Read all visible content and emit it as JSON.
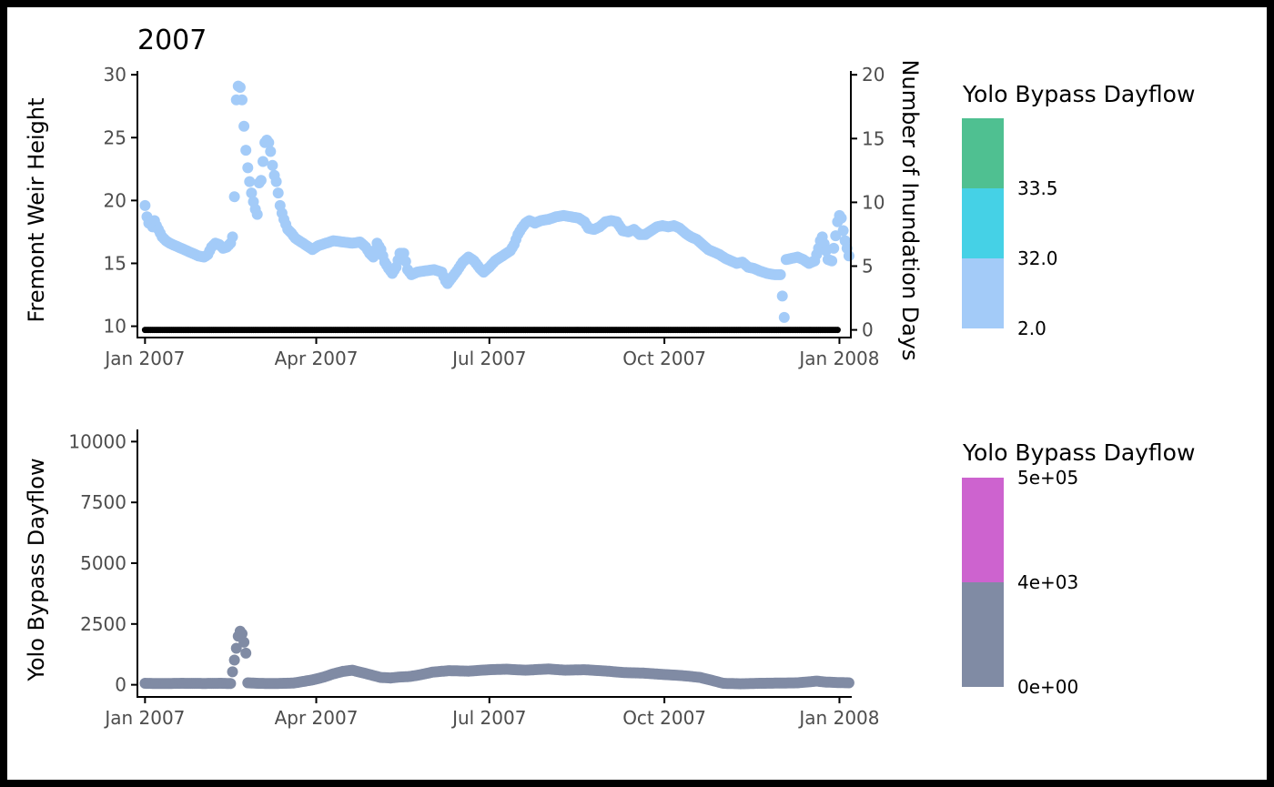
{
  "chart_data": [
    {
      "type": "scatter",
      "title": "2007",
      "ylabel": "Fremont Weir Height",
      "y2label": "Number of Inundation Days",
      "xlim": [
        "2006-12-28",
        "2008-01-07"
      ],
      "ylim": [
        9.1,
        30.3
      ],
      "y2lim": [
        -0.6,
        20.3
      ],
      "x_ticks": [
        {
          "date": "2007-01-01",
          "label": "Jan 2007"
        },
        {
          "date": "2007-04-01",
          "label": "Apr 2007"
        },
        {
          "date": "2007-07-01",
          "label": "Jul 2007"
        },
        {
          "date": "2007-10-01",
          "label": "Oct 2007"
        },
        {
          "date": "2008-01-01",
          "label": "Jan 2008"
        }
      ],
      "y_ticks": [
        10,
        15,
        20,
        25,
        30
      ],
      "y2_ticks": [
        0,
        5,
        10,
        15,
        20
      ],
      "inundation_days": {
        "color": "#000000",
        "value": 0,
        "start": "2007-01-01",
        "end": "2007-12-31"
      },
      "series_color": "#a3cbf8",
      "weir_height": [
        [
          "2007-01-01",
          19.6
        ],
        [
          "2007-01-02",
          18.7
        ],
        [
          "2007-01-03",
          18.2
        ],
        [
          "2007-01-04",
          18.3
        ],
        [
          "2007-01-05",
          17.9
        ],
        [
          "2007-01-06",
          18.4
        ],
        [
          "2007-01-07",
          18.0
        ],
        [
          "2007-01-08",
          17.7
        ],
        [
          "2007-01-09",
          17.4
        ],
        [
          "2007-01-10",
          17.1
        ],
        [
          "2007-01-12",
          16.8
        ],
        [
          "2007-01-14",
          16.6
        ],
        [
          "2007-01-17",
          16.4
        ],
        [
          "2007-01-20",
          16.2
        ],
        [
          "2007-01-23",
          16.0
        ],
        [
          "2007-01-26",
          15.8
        ],
        [
          "2007-01-29",
          15.6
        ],
        [
          "2007-02-01",
          15.5
        ],
        [
          "2007-02-03",
          15.7
        ],
        [
          "2007-02-05",
          16.3
        ],
        [
          "2007-02-07",
          16.6
        ],
        [
          "2007-02-09",
          16.5
        ],
        [
          "2007-02-11",
          16.2
        ],
        [
          "2007-02-13",
          16.3
        ],
        [
          "2007-02-15",
          16.6
        ],
        [
          "2007-02-16",
          17.1
        ],
        [
          "2007-02-17",
          20.3
        ],
        [
          "2007-02-18",
          28.0
        ],
        [
          "2007-02-19",
          29.1
        ],
        [
          "2007-02-20",
          29.0
        ],
        [
          "2007-02-21",
          28.0
        ],
        [
          "2007-02-22",
          25.9
        ],
        [
          "2007-02-23",
          24.0
        ],
        [
          "2007-02-24",
          22.6
        ],
        [
          "2007-02-25",
          21.5
        ],
        [
          "2007-02-26",
          20.6
        ],
        [
          "2007-02-27",
          19.9
        ],
        [
          "2007-02-28",
          19.3
        ],
        [
          "2007-03-01",
          18.9
        ],
        [
          "2007-03-02",
          21.4
        ],
        [
          "2007-03-03",
          21.6
        ],
        [
          "2007-03-04",
          23.1
        ],
        [
          "2007-03-05",
          24.6
        ],
        [
          "2007-03-06",
          24.8
        ],
        [
          "2007-03-07",
          24.6
        ],
        [
          "2007-03-08",
          23.9
        ],
        [
          "2007-03-09",
          22.8
        ],
        [
          "2007-03-10",
          22.0
        ],
        [
          "2007-03-11",
          21.5
        ],
        [
          "2007-03-12",
          20.6
        ],
        [
          "2007-03-13",
          19.6
        ],
        [
          "2007-03-14",
          19.0
        ],
        [
          "2007-03-15",
          18.5
        ],
        [
          "2007-03-16",
          18.1
        ],
        [
          "2007-03-17",
          17.7
        ],
        [
          "2007-03-19",
          17.4
        ],
        [
          "2007-03-21",
          17.0
        ],
        [
          "2007-03-24",
          16.7
        ],
        [
          "2007-03-27",
          16.4
        ],
        [
          "2007-03-30",
          16.1
        ],
        [
          "2007-04-02",
          16.4
        ],
        [
          "2007-04-06",
          16.6
        ],
        [
          "2007-04-10",
          16.8
        ],
        [
          "2007-04-15",
          16.7
        ],
        [
          "2007-04-20",
          16.6
        ],
        [
          "2007-04-24",
          16.7
        ],
        [
          "2007-04-27",
          16.3
        ],
        [
          "2007-04-29",
          15.8
        ],
        [
          "2007-05-01",
          15.5
        ],
        [
          "2007-05-03",
          16.6
        ],
        [
          "2007-05-05",
          16.1
        ],
        [
          "2007-05-07",
          15.1
        ],
        [
          "2007-05-09",
          14.6
        ],
        [
          "2007-05-11",
          14.2
        ],
        [
          "2007-05-13",
          14.7
        ],
        [
          "2007-05-15",
          15.8
        ],
        [
          "2007-05-17",
          15.8
        ],
        [
          "2007-05-19",
          14.5
        ],
        [
          "2007-05-21",
          14.1
        ],
        [
          "2007-05-24",
          14.3
        ],
        [
          "2007-05-28",
          14.4
        ],
        [
          "2007-06-02",
          14.5
        ],
        [
          "2007-06-06",
          14.3
        ],
        [
          "2007-06-08",
          13.6
        ],
        [
          "2007-06-09",
          13.4
        ],
        [
          "2007-06-11",
          13.8
        ],
        [
          "2007-06-14",
          14.4
        ],
        [
          "2007-06-17",
          15.1
        ],
        [
          "2007-06-20",
          15.5
        ],
        [
          "2007-06-23",
          15.2
        ],
        [
          "2007-06-26",
          14.6
        ],
        [
          "2007-06-28",
          14.3
        ],
        [
          "2007-07-01",
          14.7
        ],
        [
          "2007-07-04",
          15.2
        ],
        [
          "2007-07-08",
          15.6
        ],
        [
          "2007-07-12",
          16.0
        ],
        [
          "2007-07-14",
          16.5
        ],
        [
          "2007-07-16",
          17.3
        ],
        [
          "2007-07-18",
          17.8
        ],
        [
          "2007-07-20",
          18.2
        ],
        [
          "2007-07-22",
          18.4
        ],
        [
          "2007-07-25",
          18.2
        ],
        [
          "2007-07-28",
          18.4
        ],
        [
          "2007-08-01",
          18.5
        ],
        [
          "2007-08-05",
          18.7
        ],
        [
          "2007-08-09",
          18.8
        ],
        [
          "2007-08-13",
          18.7
        ],
        [
          "2007-08-17",
          18.6
        ],
        [
          "2007-08-20",
          18.3
        ],
        [
          "2007-08-22",
          17.8
        ],
        [
          "2007-08-25",
          17.7
        ],
        [
          "2007-08-28",
          17.9
        ],
        [
          "2007-08-31",
          18.3
        ],
        [
          "2007-09-03",
          18.4
        ],
        [
          "2007-09-06",
          18.3
        ],
        [
          "2007-09-09",
          17.6
        ],
        [
          "2007-09-12",
          17.5
        ],
        [
          "2007-09-15",
          17.7
        ],
        [
          "2007-09-18",
          17.3
        ],
        [
          "2007-09-21",
          17.3
        ],
        [
          "2007-09-24",
          17.6
        ],
        [
          "2007-09-27",
          17.9
        ],
        [
          "2007-09-30",
          18.0
        ],
        [
          "2007-10-03",
          17.9
        ],
        [
          "2007-10-06",
          18.0
        ],
        [
          "2007-10-09",
          17.8
        ],
        [
          "2007-10-12",
          17.4
        ],
        [
          "2007-10-15",
          17.1
        ],
        [
          "2007-10-18",
          16.9
        ],
        [
          "2007-10-21",
          16.5
        ],
        [
          "2007-10-24",
          16.1
        ],
        [
          "2007-10-27",
          15.9
        ],
        [
          "2007-10-30",
          15.7
        ],
        [
          "2007-11-02",
          15.4
        ],
        [
          "2007-11-05",
          15.2
        ],
        [
          "2007-11-08",
          15.0
        ],
        [
          "2007-11-11",
          15.1
        ],
        [
          "2007-11-14",
          14.7
        ],
        [
          "2007-11-17",
          14.6
        ],
        [
          "2007-11-20",
          14.4
        ],
        [
          "2007-11-24",
          14.2
        ],
        [
          "2007-11-28",
          14.1
        ],
        [
          "2007-12-01",
          14.1
        ],
        [
          "2007-12-03",
          10.7
        ],
        [
          "2007-12-04",
          15.3
        ],
        [
          "2007-12-07",
          15.4
        ],
        [
          "2007-12-10",
          15.5
        ],
        [
          "2007-12-13",
          15.3
        ],
        [
          "2007-12-16",
          15.0
        ],
        [
          "2007-12-19",
          15.2
        ],
        [
          "2007-12-21",
          16.2
        ],
        [
          "2007-12-22",
          16.8
        ],
        [
          "2007-12-23",
          17.1
        ],
        [
          "2007-12-25",
          16.0
        ],
        [
          "2007-12-26",
          15.3
        ],
        [
          "2007-12-28",
          15.2
        ],
        [
          "2007-12-29",
          16.2
        ],
        [
          "2007-12-30",
          17.2
        ],
        [
          "2007-12-31",
          18.3
        ],
        [
          "2008-01-01",
          18.8
        ],
        [
          "2008-01-02",
          18.6
        ],
        [
          "2008-01-03",
          17.6
        ],
        [
          "2008-01-04",
          16.8
        ],
        [
          "2008-01-05",
          16.2
        ],
        [
          "2008-01-06",
          15.6
        ]
      ],
      "legend": {
        "title": "Yolo Bypass Dayflow",
        "placement": "right",
        "bins": [
          {
            "color": "#a3cbf8",
            "lower": "2.0",
            "upper": "32.0"
          },
          {
            "color": "#45d1e6",
            "lower": "32.0",
            "upper": "33.5"
          },
          {
            "color": "#4fc091",
            "lower": "33.5",
            "upper": ""
          }
        ],
        "labels": [
          "2.0",
          "32.0",
          "33.5"
        ]
      }
    },
    {
      "type": "scatter",
      "title": "",
      "ylabel": "Yolo Bypass Dayflow",
      "xlim": [
        "2006-12-28",
        "2008-01-07"
      ],
      "ylim": [
        -500,
        10500
      ],
      "x_ticks": [
        {
          "date": "2007-01-01",
          "label": "Jan 2007"
        },
        {
          "date": "2007-04-01",
          "label": "Apr 2007"
        },
        {
          "date": "2007-07-01",
          "label": "Jul 2007"
        },
        {
          "date": "2007-10-01",
          "label": "Oct 2007"
        },
        {
          "date": "2008-01-01",
          "label": "Jan 2008"
        }
      ],
      "y_ticks": [
        0,
        2500,
        5000,
        7500,
        10000
      ],
      "series_color": "#808ba4",
      "dayflow": [
        [
          "2007-01-01",
          60
        ],
        [
          "2007-01-10",
          50
        ],
        [
          "2007-01-20",
          60
        ],
        [
          "2007-02-01",
          55
        ],
        [
          "2007-02-10",
          60
        ],
        [
          "2007-02-15",
          50
        ],
        [
          "2007-02-18",
          1500
        ],
        [
          "2007-02-19",
          2000
        ],
        [
          "2007-02-20",
          2200
        ],
        [
          "2007-02-21",
          2100
        ],
        [
          "2007-02-22",
          1750
        ],
        [
          "2007-02-23",
          1300
        ],
        [
          "2007-02-24",
          80
        ],
        [
          "2007-03-01",
          60
        ],
        [
          "2007-03-10",
          50
        ],
        [
          "2007-03-20",
          70
        ],
        [
          "2007-03-30",
          200
        ],
        [
          "2007-04-05",
          320
        ],
        [
          "2007-04-10",
          450
        ],
        [
          "2007-04-15",
          550
        ],
        [
          "2007-04-20",
          600
        ],
        [
          "2007-04-25",
          500
        ],
        [
          "2007-05-01",
          380
        ],
        [
          "2007-05-05",
          300
        ],
        [
          "2007-05-10",
          280
        ],
        [
          "2007-05-15",
          320
        ],
        [
          "2007-05-20",
          340
        ],
        [
          "2007-05-25",
          400
        ],
        [
          "2007-06-01",
          520
        ],
        [
          "2007-06-10",
          580
        ],
        [
          "2007-06-20",
          560
        ],
        [
          "2007-07-01",
          620
        ],
        [
          "2007-07-10",
          640
        ],
        [
          "2007-07-20",
          600
        ],
        [
          "2007-08-01",
          650
        ],
        [
          "2007-08-10",
          600
        ],
        [
          "2007-08-20",
          620
        ],
        [
          "2007-09-01",
          560
        ],
        [
          "2007-09-10",
          500
        ],
        [
          "2007-09-20",
          480
        ],
        [
          "2007-10-01",
          420
        ],
        [
          "2007-10-10",
          380
        ],
        [
          "2007-10-20",
          300
        ],
        [
          "2007-10-25",
          200
        ],
        [
          "2007-11-01",
          60
        ],
        [
          "2007-11-10",
          40
        ],
        [
          "2007-11-20",
          60
        ],
        [
          "2007-12-01",
          70
        ],
        [
          "2007-12-10",
          80
        ],
        [
          "2007-12-20",
          150
        ],
        [
          "2007-12-25",
          110
        ],
        [
          "2008-01-01",
          90
        ],
        [
          "2008-01-06",
          80
        ]
      ],
      "legend": {
        "title": "Yolo Bypass Dayflow",
        "placement": "right",
        "bins": [
          {
            "color": "#808ba4",
            "lower": "0e+00",
            "upper": "4e+03"
          },
          {
            "color": "#cd63cf",
            "lower": "4e+03",
            "upper": "5e+05"
          }
        ],
        "labels": [
          "0e+00",
          "4e+03",
          "5e+05"
        ]
      }
    }
  ]
}
